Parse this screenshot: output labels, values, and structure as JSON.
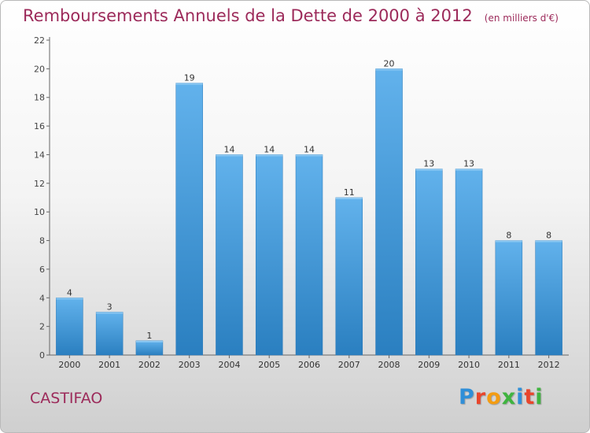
{
  "title": "Remboursements Annuels de la Dette de 2000 à 2012",
  "unit_note": "(en milliers d'€)",
  "commune": "CASTIFAO",
  "logo": {
    "text": "Proxiti",
    "colors": [
      "#2f8fd8",
      "#e8462c",
      "#f39c12",
      "#3fb43f",
      "#2f8fd8",
      "#e8462c",
      "#3fb43f"
    ]
  },
  "colors": {
    "bar_top": "#62b2ec",
    "bar_bottom": "#2a7fc0",
    "title": "#9c2a5a",
    "axis": "#666666"
  },
  "chart_data": {
    "type": "bar",
    "title": "Remboursements Annuels de la Dette de 2000 à 2012",
    "categories": [
      "2000",
      "2001",
      "2002",
      "2003",
      "2004",
      "2005",
      "2006",
      "2007",
      "2008",
      "2009",
      "2010",
      "2011",
      "2012"
    ],
    "values": [
      4,
      3,
      1,
      19,
      14,
      14,
      14,
      11,
      20,
      13,
      13,
      8,
      8
    ],
    "yticks": [
      0,
      2,
      4,
      6,
      8,
      10,
      12,
      14,
      16,
      18,
      20,
      22
    ],
    "ylim": [
      0,
      22
    ],
    "xlabel": "",
    "ylabel": "",
    "grid": false,
    "legend": "none"
  }
}
